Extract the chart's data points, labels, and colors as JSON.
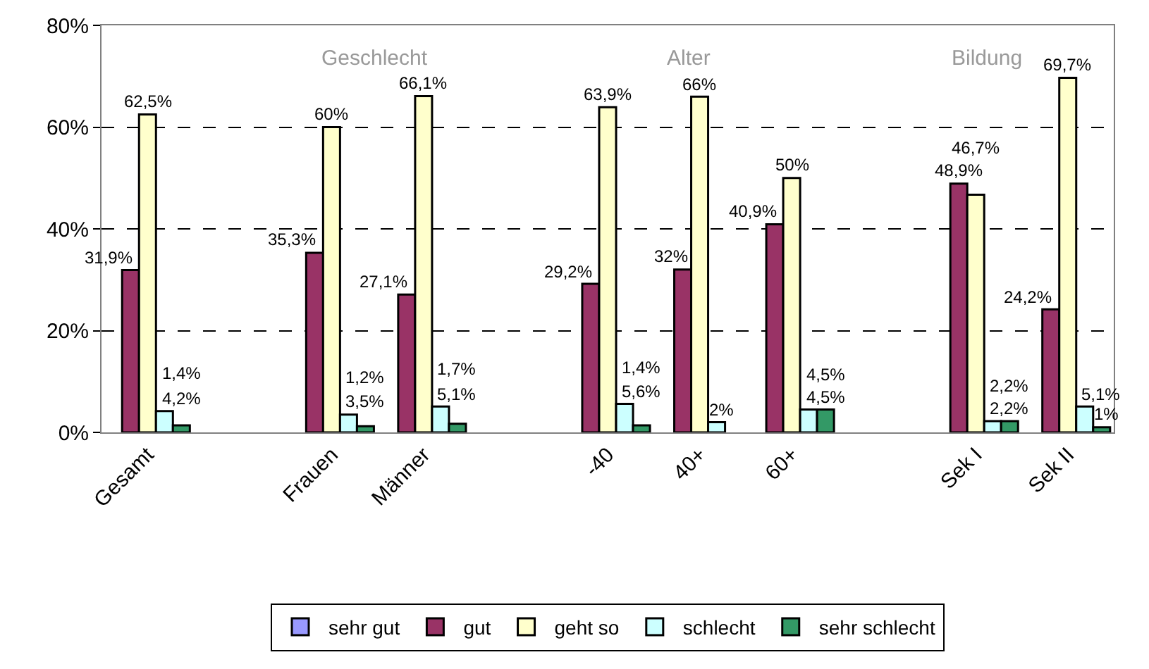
{
  "chart_data": {
    "type": "bar",
    "categories": [
      "Gesamt",
      null,
      "Frauen",
      "Männer",
      null,
      "-40",
      "40+",
      "60+",
      null,
      "Sek I",
      "Sek II"
    ],
    "series": [
      {
        "name": "sehr gut",
        "color": "#9999ff",
        "values": [
          null,
          null,
          null,
          null,
          null,
          null,
          null,
          null,
          null,
          null,
          null
        ],
        "value_labels": [
          null,
          null,
          null,
          null,
          null,
          null,
          null,
          null,
          null,
          null,
          null
        ]
      },
      {
        "name": "gut",
        "color": "#993366",
        "values": [
          31.9,
          null,
          35.3,
          27.1,
          null,
          29.2,
          32,
          40.9,
          null,
          48.9,
          24.2
        ],
        "value_labels": [
          "31,9%",
          null,
          "35,3%",
          "27,1%",
          null,
          "29,2%",
          "32%",
          "40,9%",
          null,
          "48,9%",
          "24,2%"
        ]
      },
      {
        "name": "geht so",
        "color": "#ffffcc",
        "values": [
          62.5,
          null,
          60,
          66.1,
          null,
          63.9,
          66,
          50,
          null,
          46.7,
          69.7
        ],
        "value_labels": [
          "62,5%",
          null,
          "60%",
          "66,1%",
          null,
          "63,9%",
          "66%",
          "50%",
          null,
          "46,7%",
          "69,7%"
        ]
      },
      {
        "name": "schlecht",
        "color": "#ccffff",
        "values": [
          4.2,
          null,
          3.5,
          5.1,
          null,
          5.6,
          2,
          4.5,
          null,
          2.2,
          5.1
        ],
        "value_labels": [
          "4,2%",
          null,
          "3,5%",
          "5,1%",
          null,
          "5,6%",
          "2%",
          "4,5%",
          null,
          "2,2%",
          "5,1%"
        ]
      },
      {
        "name": "sehr schlecht",
        "color": "#339966",
        "values": [
          1.4,
          null,
          1.2,
          1.7,
          null,
          1.4,
          null,
          4.5,
          null,
          2.2,
          1
        ],
        "value_labels": [
          "1,4%",
          null,
          "1,2%",
          "1,7%",
          null,
          "1,4%",
          null,
          "4,5%",
          null,
          "2,2%",
          "1%"
        ]
      }
    ],
    "ylim": [
      0,
      80
    ],
    "yticks": [
      {
        "value": 0,
        "label": "0%"
      },
      {
        "value": 20,
        "label": "20%"
      },
      {
        "value": 40,
        "label": "40%"
      },
      {
        "value": 60,
        "label": "60%"
      },
      {
        "value": 80,
        "label": "80%"
      }
    ],
    "annotations": [
      "Geschlecht",
      "Alter",
      "Bildung"
    ],
    "grid": "y",
    "legend": "bottom"
  }
}
